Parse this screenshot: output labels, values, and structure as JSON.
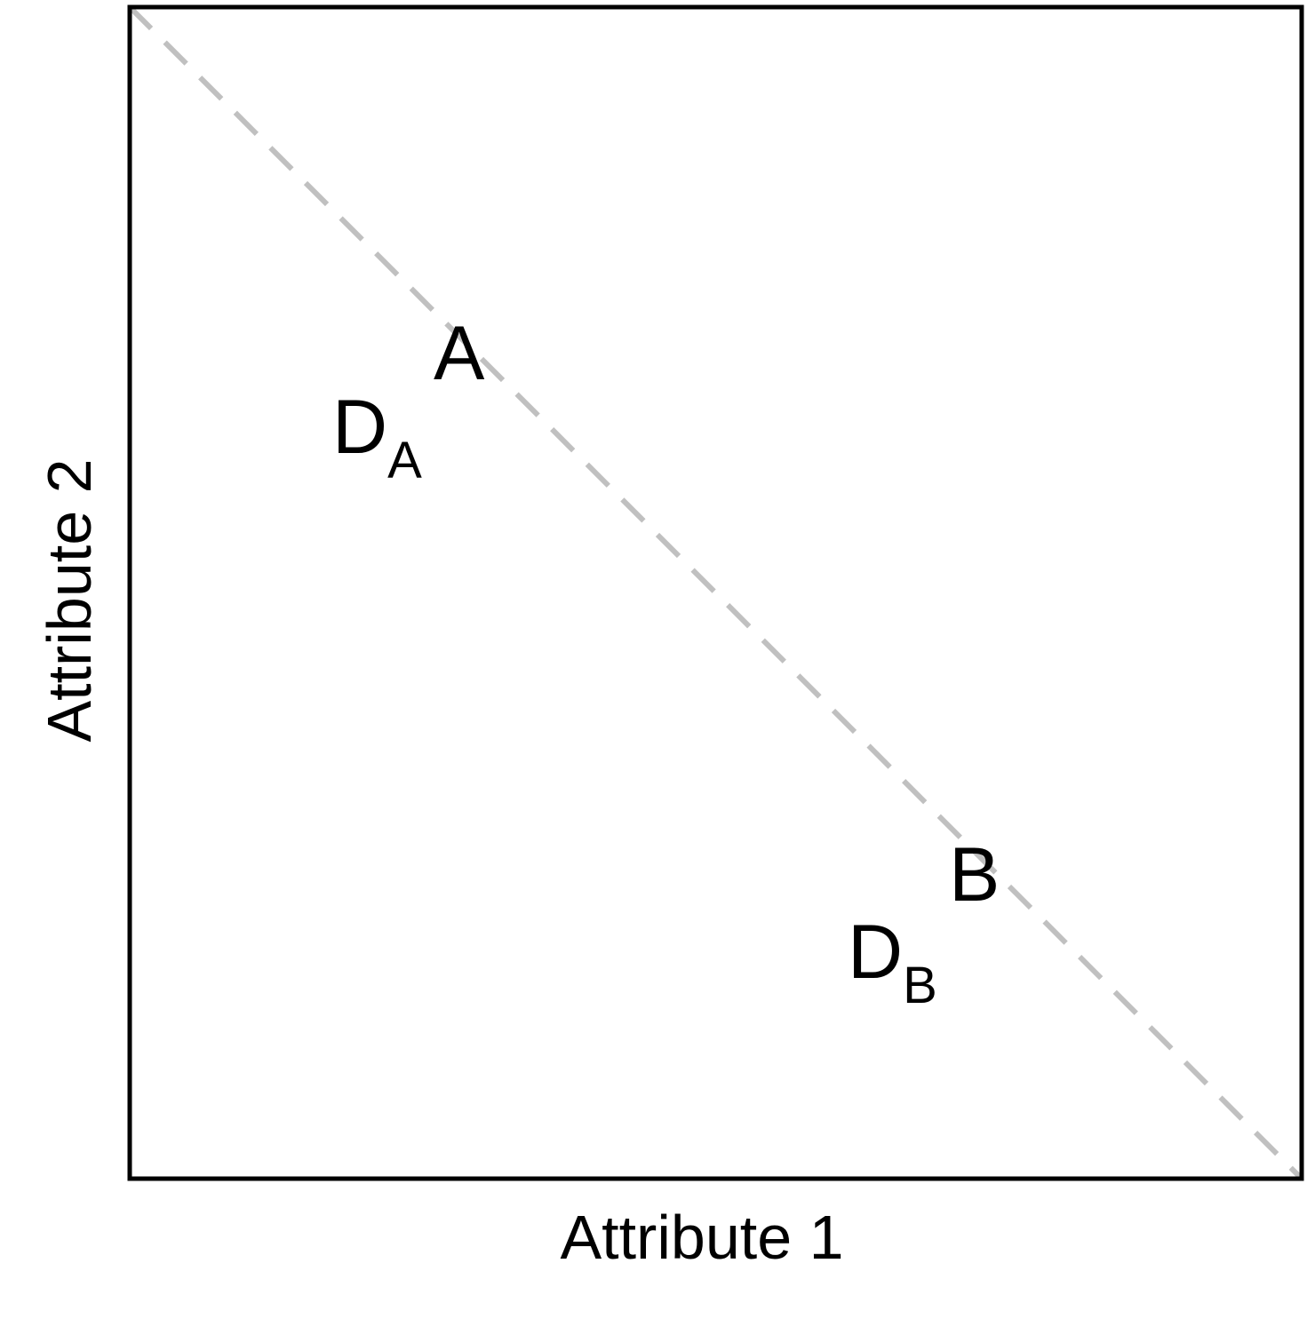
{
  "diagram": {
    "axes": {
      "x_label": "Attribute 1",
      "y_label": "Attribute 2"
    },
    "points": [
      {
        "id": "A",
        "label": "A"
      },
      {
        "id": "B",
        "label": "B"
      }
    ],
    "decoys": [
      {
        "id": "DA",
        "main": "D",
        "sub": "A"
      },
      {
        "id": "DB",
        "main": "D",
        "sub": "B"
      }
    ],
    "trade_off_line": {
      "style": "dashed",
      "from": "top-left",
      "to": "bottom-right"
    },
    "colors": {
      "frame": "#000000",
      "text": "#000000",
      "trade_off_line": "#c0c0c0",
      "background": "#ffffff"
    }
  }
}
